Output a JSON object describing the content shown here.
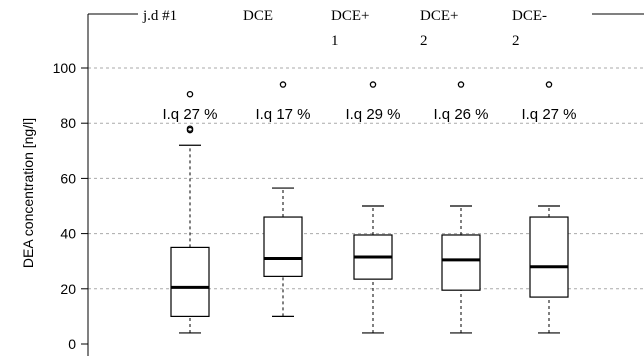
{
  "chart_data": {
    "type": "box",
    "ylabel": "DEA concentration [ng/l]",
    "ylim": [
      0,
      100
    ],
    "yticks": [
      0,
      20,
      40,
      60,
      80,
      100
    ],
    "grid": true,
    "categories": [
      {
        "label_lines": [
          "j.d #1"
        ],
        "iq_label": "I.q 27 %",
        "whisker_low": 4,
        "q1": 10,
        "median": 20.5,
        "q3": 35,
        "whisker_high": 72,
        "outliers": [
          77.5,
          78,
          90.5
        ]
      },
      {
        "label_lines": [
          "DCE"
        ],
        "iq_label": "I.q 17 %",
        "whisker_low": 10,
        "q1": 24.5,
        "median": 31,
        "q3": 46,
        "whisker_high": 56.5,
        "outliers": [
          94
        ]
      },
      {
        "label_lines": [
          "DCE+",
          "1"
        ],
        "iq_label": "I.q 29 %",
        "whisker_low": 4,
        "q1": 23.5,
        "median": 31.5,
        "q3": 39.5,
        "whisker_high": 50,
        "outliers": [
          94
        ]
      },
      {
        "label_lines": [
          "DCE+",
          "2"
        ],
        "iq_label": "I.q 26 %",
        "whisker_low": 4,
        "q1": 19.5,
        "median": 30.5,
        "q3": 39.5,
        "whisker_high": 50,
        "outliers": [
          94
        ]
      },
      {
        "label_lines": [
          "DCE-",
          "2"
        ],
        "iq_label": "I.q 27 %",
        "whisker_low": 4,
        "q1": 17,
        "median": 28,
        "q3": 46,
        "whisker_high": 50,
        "outliers": [
          94
        ]
      }
    ]
  }
}
